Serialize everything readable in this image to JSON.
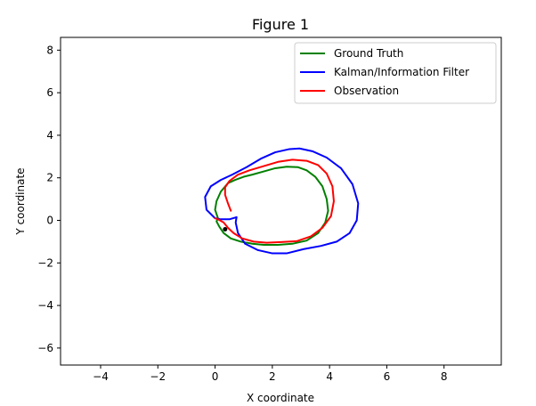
{
  "window": {
    "title": "Figure 1"
  },
  "chart_data": {
    "type": "line",
    "title": "Figure 1",
    "xlabel": "X coordinate",
    "ylabel": "Y coordinate",
    "xlim": [
      -5.4,
      10.0
    ],
    "ylim": [
      -6.8,
      8.6
    ],
    "xticks": [
      -4,
      -2,
      0,
      2,
      4,
      6,
      8
    ],
    "yticks": [
      -6,
      -4,
      -2,
      0,
      2,
      4,
      6,
      8
    ],
    "legend_position": "top-right",
    "grid": false,
    "series": [
      {
        "name": "Ground Truth",
        "color": "#008000",
        "points": [
          [
            0.1,
            0.1
          ],
          [
            0.0,
            0.5
          ],
          [
            0.05,
            0.9
          ],
          [
            0.2,
            1.35
          ],
          [
            0.45,
            1.75
          ],
          [
            0.7,
            1.9
          ],
          [
            1.0,
            2.05
          ],
          [
            1.3,
            2.15
          ],
          [
            1.7,
            2.3
          ],
          [
            2.1,
            2.45
          ],
          [
            2.5,
            2.52
          ],
          [
            2.9,
            2.5
          ],
          [
            3.2,
            2.35
          ],
          [
            3.5,
            2.05
          ],
          [
            3.75,
            1.6
          ],
          [
            3.9,
            1.0
          ],
          [
            3.95,
            0.45
          ],
          [
            3.85,
            -0.1
          ],
          [
            3.6,
            -0.6
          ],
          [
            3.2,
            -0.95
          ],
          [
            2.7,
            -1.1
          ],
          [
            2.2,
            -1.15
          ],
          [
            1.7,
            -1.15
          ],
          [
            1.3,
            -1.1
          ],
          [
            0.9,
            -1.0
          ],
          [
            0.55,
            -0.85
          ],
          [
            0.3,
            -0.6
          ],
          [
            0.15,
            -0.3
          ],
          [
            0.05,
            -0.05
          ],
          [
            0.1,
            0.1
          ]
        ]
      },
      {
        "name": "Kalman/Information Filter",
        "color": "#0000ff",
        "points": [
          [
            0.0,
            0.1
          ],
          [
            -0.3,
            0.5
          ],
          [
            -0.35,
            1.1
          ],
          [
            -0.15,
            1.6
          ],
          [
            0.2,
            1.9
          ],
          [
            0.6,
            2.15
          ],
          [
            1.1,
            2.5
          ],
          [
            1.6,
            2.9
          ],
          [
            2.1,
            3.2
          ],
          [
            2.6,
            3.35
          ],
          [
            2.95,
            3.38
          ],
          [
            3.4,
            3.25
          ],
          [
            3.9,
            2.95
          ],
          [
            4.4,
            2.45
          ],
          [
            4.8,
            1.7
          ],
          [
            5.0,
            0.8
          ],
          [
            4.95,
            0.0
          ],
          [
            4.7,
            -0.6
          ],
          [
            4.25,
            -1.0
          ],
          [
            3.7,
            -1.2
          ],
          [
            3.1,
            -1.35
          ],
          [
            2.5,
            -1.55
          ],
          [
            2.0,
            -1.55
          ],
          [
            1.5,
            -1.4
          ],
          [
            1.05,
            -1.1
          ],
          [
            0.8,
            -0.6
          ],
          [
            0.72,
            -0.1
          ],
          [
            0.75,
            0.15
          ],
          [
            0.5,
            0.05
          ],
          [
            0.2,
            0.05
          ],
          [
            0.0,
            0.1
          ]
        ]
      },
      {
        "name": "Observation",
        "color": "#ff0000",
        "points": [
          [
            0.55,
            0.45
          ],
          [
            0.45,
            0.8
          ],
          [
            0.35,
            1.2
          ],
          [
            0.35,
            1.55
          ],
          [
            0.5,
            1.85
          ],
          [
            0.8,
            2.15
          ],
          [
            1.2,
            2.35
          ],
          [
            1.7,
            2.55
          ],
          [
            2.2,
            2.75
          ],
          [
            2.7,
            2.85
          ],
          [
            3.2,
            2.8
          ],
          [
            3.6,
            2.6
          ],
          [
            3.9,
            2.2
          ],
          [
            4.1,
            1.6
          ],
          [
            4.15,
            0.9
          ],
          [
            4.05,
            0.2
          ],
          [
            3.75,
            -0.35
          ],
          [
            3.35,
            -0.75
          ],
          [
            2.85,
            -0.98
          ],
          [
            2.3,
            -1.02
          ],
          [
            1.8,
            -1.05
          ],
          [
            1.35,
            -1.0
          ],
          [
            0.95,
            -0.85
          ],
          [
            0.65,
            -0.6
          ],
          [
            0.45,
            -0.35
          ],
          [
            0.3,
            -0.1
          ],
          [
            0.1,
            0.05
          ],
          [
            0.0,
            0.1
          ]
        ]
      }
    ],
    "markers": [
      {
        "x": 0.35,
        "y": -0.42,
        "color": "#000000"
      }
    ]
  }
}
